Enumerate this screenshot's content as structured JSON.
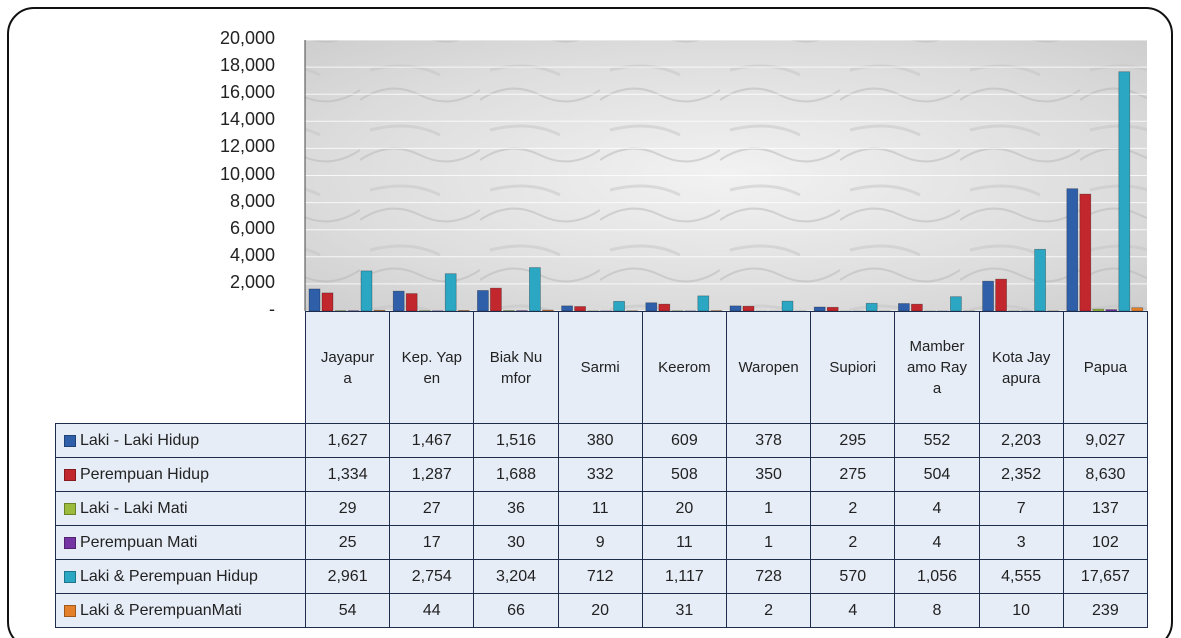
{
  "chart_data": {
    "type": "bar",
    "categories": [
      "Jayapura",
      "Kep. Yapen",
      "Biak Numfor",
      "Sarmi",
      "Keerom",
      "Waropen",
      "Supiori",
      "Mamberamo Raya",
      "Kota Jayapura",
      "Papua"
    ],
    "series": [
      {
        "name": "Laki - Laki Hidup",
        "color": "#2f5fa9",
        "values": [
          1627,
          1467,
          1516,
          380,
          609,
          378,
          295,
          552,
          2203,
          9027
        ],
        "value_labels": [
          "1,627",
          "1,467",
          "1,516",
          "380",
          "609",
          "378",
          "295",
          "552",
          "2,203",
          "9,027"
        ]
      },
      {
        "name": "Perempuan Hidup",
        "color": "#c1272d",
        "values": [
          1334,
          1287,
          1688,
          332,
          508,
          350,
          275,
          504,
          2352,
          8630
        ],
        "value_labels": [
          "1,334",
          "1,287",
          "1,688",
          "332",
          "508",
          "350",
          "275",
          "504",
          "2,352",
          "8,630"
        ]
      },
      {
        "name": "Laki - Laki Mati",
        "color": "#9bbb3c",
        "values": [
          29,
          27,
          36,
          11,
          20,
          1,
          2,
          4,
          7,
          137
        ],
        "value_labels": [
          "29",
          "27",
          "36",
          "11",
          "20",
          "1",
          "2",
          "4",
          "7",
          "137"
        ]
      },
      {
        "name": "Perempuan Mati",
        "color": "#7434a3",
        "values": [
          25,
          17,
          30,
          9,
          11,
          1,
          2,
          4,
          3,
          102
        ],
        "value_labels": [
          "25",
          "17",
          "30",
          "9",
          "11",
          "1",
          "2",
          "4",
          "3",
          "102"
        ]
      },
      {
        "name": "Laki & Perempuan Hidup",
        "color": "#2ba6c3",
        "values": [
          2961,
          2754,
          3204,
          712,
          1117,
          728,
          570,
          1056,
          4555,
          17657
        ],
        "value_labels": [
          "2,961",
          "2,754",
          "3,204",
          "712",
          "1,117",
          "728",
          "570",
          "1,056",
          "4,555",
          "17,657"
        ]
      },
      {
        "name": "Laki & PerempuanMati",
        "color": "#e5802a",
        "values": [
          54,
          44,
          66,
          20,
          31,
          2,
          4,
          8,
          10,
          239
        ],
        "value_labels": [
          "54",
          "44",
          "66",
          "20",
          "31",
          "2",
          "4",
          "8",
          "10",
          "239"
        ]
      }
    ],
    "ylim": [
      0,
      20000
    ],
    "yticks": [
      {
        "value": 0,
        "label": "-"
      },
      {
        "value": 2000,
        "label": "2,000"
      },
      {
        "value": 4000,
        "label": "4,000"
      },
      {
        "value": 6000,
        "label": "6,000"
      },
      {
        "value": 8000,
        "label": "8,000"
      },
      {
        "value": 10000,
        "label": "10,000"
      },
      {
        "value": 12000,
        "label": "12,000"
      },
      {
        "value": 14000,
        "label": "14,000"
      },
      {
        "value": 16000,
        "label": "16,000"
      },
      {
        "value": 18000,
        "label": "18,000"
      },
      {
        "value": 20000,
        "label": "20,000"
      }
    ],
    "grid": true
  }
}
